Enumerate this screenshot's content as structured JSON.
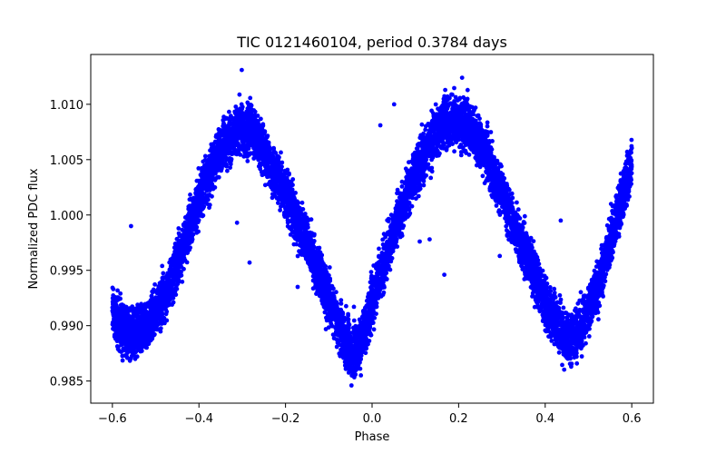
{
  "chart_data": {
    "type": "scatter",
    "title": "TIC 0121460104, period 0.3784 days",
    "xlabel": "Phase",
    "ylabel": "Normalized PDC flux",
    "xlim": [
      -0.65,
      0.65
    ],
    "ylim": [
      0.983,
      1.0145
    ],
    "xticks": [
      -0.6,
      -0.4,
      -0.2,
      0.0,
      0.2,
      0.4,
      0.6
    ],
    "xtick_labels": [
      "−0.6",
      "−0.4",
      "−0.2",
      "0.0",
      "0.2",
      "0.4",
      "0.6"
    ],
    "yticks": [
      0.985,
      0.99,
      0.995,
      1.0,
      1.005,
      1.01
    ],
    "ytick_labels": [
      "0.985",
      "0.990",
      "0.995",
      "1.000",
      "1.005",
      "1.010"
    ],
    "grid": false,
    "marker_color": "#0000ff",
    "series": [
      {
        "name": "flux",
        "phase_range": [
          -0.6,
          0.6
        ],
        "curve_x": [
          -0.6,
          -0.58,
          -0.56,
          -0.54,
          -0.5,
          -0.45,
          -0.4,
          -0.35,
          -0.31,
          -0.27,
          -0.2,
          -0.15,
          -0.1,
          -0.07,
          -0.05,
          -0.03,
          0.0,
          0.05,
          0.1,
          0.15,
          0.19,
          0.22,
          0.26,
          0.3,
          0.35,
          0.4,
          0.44,
          0.46,
          0.48,
          0.52,
          0.55,
          0.58,
          0.6
        ],
        "curve_y": [
          0.9915,
          0.99,
          0.9892,
          0.9895,
          0.991,
          0.9955,
          1.0015,
          1.006,
          1.008,
          1.0072,
          1.002,
          0.9975,
          0.9925,
          0.9895,
          0.9875,
          0.988,
          0.992,
          0.9985,
          1.004,
          1.0078,
          1.0088,
          1.0082,
          1.0058,
          1.002,
          0.997,
          0.992,
          0.9893,
          0.989,
          0.9895,
          0.9935,
          0.9975,
          1.002,
          1.0045
        ],
        "scatter_width": 0.0022,
        "point_count": 9000,
        "outliers": [
          {
            "x": -0.301,
            "y": 1.0131
          },
          {
            "x": -0.283,
            "y": 0.9957
          },
          {
            "x": -0.312,
            "y": 0.9993
          },
          {
            "x": -0.557,
            "y": 0.999
          },
          {
            "x": 0.019,
            "y": 1.0081
          },
          {
            "x": 0.051,
            "y": 1.01
          },
          {
            "x": 0.208,
            "y": 1.0124
          },
          {
            "x": 0.167,
            "y": 0.9946
          },
          {
            "x": 0.133,
            "y": 0.9978
          },
          {
            "x": 0.11,
            "y": 0.9976
          },
          {
            "x": -0.172,
            "y": 0.9935
          },
          {
            "x": -0.117,
            "y": 0.996
          },
          {
            "x": -0.042,
            "y": 0.9917
          },
          {
            "x": 0.436,
            "y": 0.9995
          },
          {
            "x": 0.34,
            "y": 0.999
          },
          {
            "x": 0.295,
            "y": 0.9963
          },
          {
            "x": 0.36,
            "y": 0.9963
          }
        ]
      }
    ]
  }
}
